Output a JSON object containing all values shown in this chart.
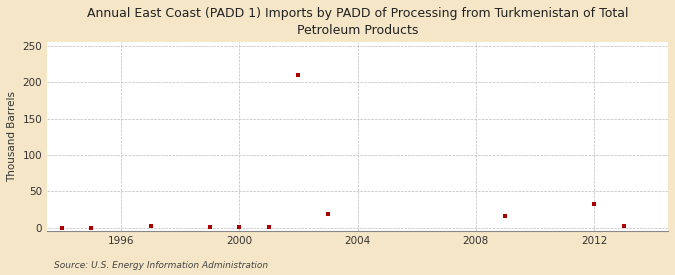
{
  "title": "Annual East Coast (PADD 1) Imports by PADD of Processing from Turkmenistan of Total\nPetroleum Products",
  "ylabel": "Thousand Barrels",
  "source": "Source: U.S. Energy Information Administration",
  "background_color": "#f5e6c8",
  "plot_background_color": "#ffffff",
  "marker_color": "#aa0000",
  "marker": "s",
  "marker_size": 3.5,
  "xlim": [
    1993.5,
    2014.5
  ],
  "ylim": [
    -5,
    255
  ],
  "yticks": [
    0,
    50,
    100,
    150,
    200,
    250
  ],
  "xticks": [
    1996,
    2000,
    2004,
    2008,
    2012
  ],
  "grid_color": "#bbbbbb",
  "data_x": [
    1994,
    1995,
    1997,
    1999,
    2000,
    2001,
    2002,
    2003,
    2009,
    2012,
    2013
  ],
  "data_y": [
    0,
    0,
    2,
    1,
    1,
    1,
    210,
    18,
    16,
    32,
    2
  ]
}
